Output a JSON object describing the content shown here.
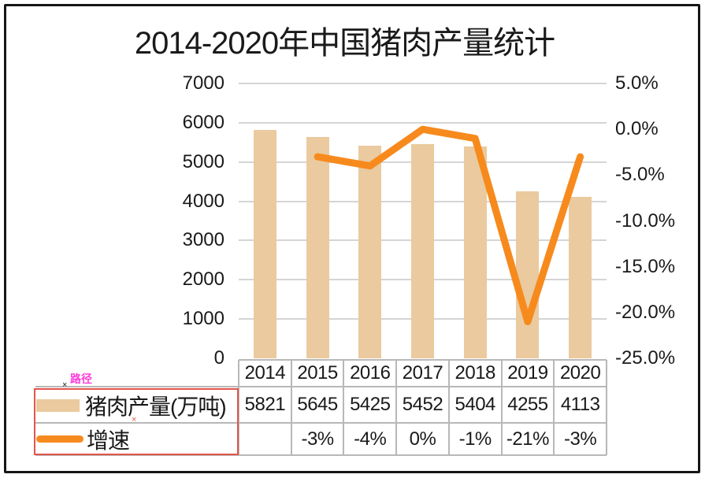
{
  "title": "2014-2020年中国猪肉产量统计",
  "colors": {
    "bar": "#eaca9e",
    "line": "#f78a1d",
    "grid": "#d5d5d5",
    "table_border": "#b8b8b8",
    "selection_border": "#e4554b",
    "path_label": "#ff3cda",
    "marker_red": "#e4554b",
    "text": "#1a1a1a",
    "frame_border": "#161616"
  },
  "chart_data": {
    "type": "bar+line combo",
    "title": "2014-2020年中国猪肉产量统计",
    "categories": [
      "2014",
      "2015",
      "2016",
      "2017",
      "2018",
      "2019",
      "2020"
    ],
    "series": [
      {
        "name": "猪肉产量(万吨)",
        "type": "bar",
        "axis": "left",
        "values": [
          5821,
          5645,
          5425,
          5452,
          5404,
          4255,
          4113
        ]
      },
      {
        "name": "增速",
        "type": "line",
        "axis": "right",
        "values": [
          null,
          -3,
          -4,
          0,
          -1,
          -21,
          -3
        ],
        "labels": [
          "",
          "-3%",
          "-4%",
          "0%",
          "-1%",
          "-21%",
          "-3%"
        ]
      }
    ],
    "left_axis": {
      "min": 0,
      "max": 7000,
      "ticks": [
        "7000",
        "6000",
        "5000",
        "4000",
        "3000",
        "2000",
        "1000",
        "0"
      ]
    },
    "right_axis": {
      "min": -25,
      "max": 5,
      "ticks": [
        "5.0%",
        "0.0%",
        "-5.0%",
        "-10.0%",
        "-15.0%",
        "-20.0%",
        "-25.0%"
      ]
    },
    "grid": true,
    "legend_position": "bottom-left data table"
  },
  "table": {
    "header": [
      "2014",
      "2015",
      "2016",
      "2017",
      "2018",
      "2019",
      "2020"
    ],
    "rows": [
      {
        "label": "猪肉产量(万吨)",
        "swatch": "bar",
        "values": [
          "5821",
          "5645",
          "5425",
          "5452",
          "5404",
          "4255",
          "4113"
        ]
      },
      {
        "label": "增速",
        "swatch": "line",
        "values": [
          "",
          "-3%",
          "-4%",
          "0%",
          "-1%",
          "-21%",
          "-3%"
        ]
      }
    ]
  },
  "annotations": {
    "path_label": "路径",
    "marker_top": "×",
    "marker_mid": "×"
  }
}
